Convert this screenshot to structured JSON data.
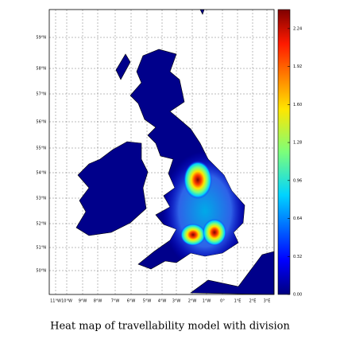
{
  "map": {
    "lat_labels": [
      "59°N",
      "58°N",
      "57°N",
      "56°N",
      "55°N",
      "54°N",
      "53°N",
      "52°N",
      "51°N",
      "50°N"
    ],
    "lon_labels": [
      "11°W",
      "10°W",
      "9°W",
      "8°W",
      "7°W",
      "6°W",
      "5°W",
      "4°W",
      "3°W",
      "2°W",
      "1°W",
      "0°",
      "1°E",
      "2°E",
      "3°E"
    ]
  },
  "colorbar": {
    "lim": [
      0,
      2.4
    ],
    "ticks": [
      {
        "value": 0,
        "label": "0.00"
      },
      {
        "value": 0.32,
        "label": "0.32"
      },
      {
        "value": 0.64,
        "label": "0.64"
      },
      {
        "value": 0.96,
        "label": "0.96"
      },
      {
        "value": 1.28,
        "label": "1.28"
      },
      {
        "value": 1.6,
        "label": "1.60"
      },
      {
        "value": 1.92,
        "label": "1.92"
      },
      {
        "value": 2.24,
        "label": "2.24"
      }
    ]
  },
  "caption": "Heat map of travellability model with division"
}
